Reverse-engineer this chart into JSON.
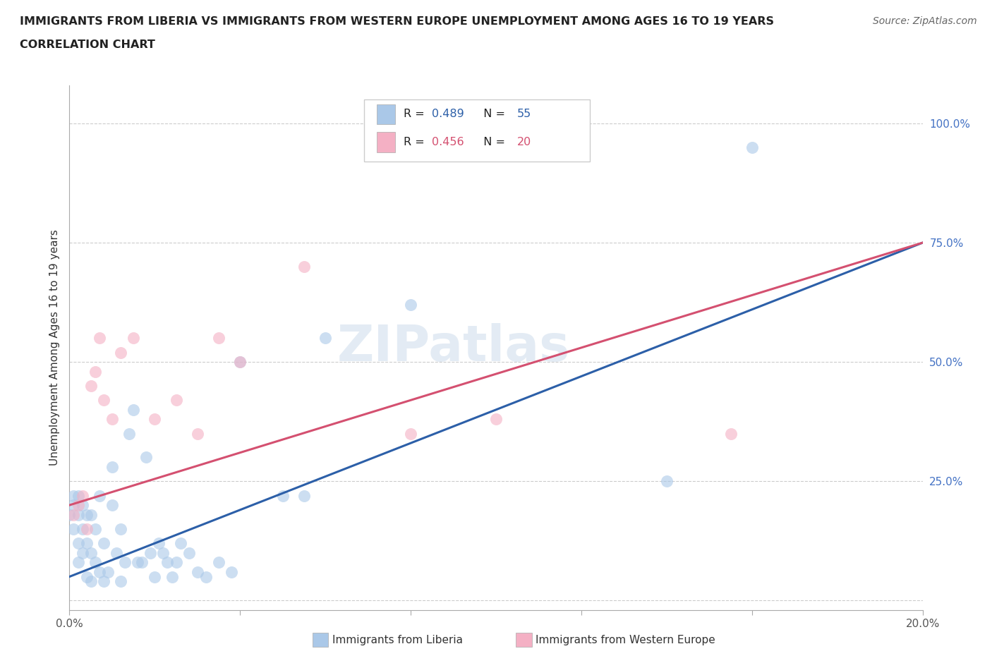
{
  "title_line1": "IMMIGRANTS FROM LIBERIA VS IMMIGRANTS FROM WESTERN EUROPE UNEMPLOYMENT AMONG AGES 16 TO 19 YEARS",
  "title_line2": "CORRELATION CHART",
  "source_text": "Source: ZipAtlas.com",
  "ylabel": "Unemployment Among Ages 16 to 19 years",
  "xlim": [
    0.0,
    0.2
  ],
  "ylim": [
    -0.02,
    1.08
  ],
  "xticks": [
    0.0,
    0.04,
    0.08,
    0.12,
    0.16,
    0.2
  ],
  "xticklabels": [
    "0.0%",
    "",
    "",
    "",
    "",
    "20.0%"
  ],
  "yticks": [
    0.0,
    0.25,
    0.5,
    0.75,
    1.0
  ],
  "yticklabels": [
    "",
    "25.0%",
    "50.0%",
    "75.0%",
    "100.0%"
  ],
  "liberia_R": 0.489,
  "liberia_N": 55,
  "western_europe_R": 0.456,
  "western_europe_N": 20,
  "liberia_color": "#aac8e8",
  "western_europe_color": "#f4b0c4",
  "liberia_line_color": "#2c5fa8",
  "western_europe_line_color": "#d45070",
  "ytick_color": "#4472c4",
  "legend_label_liberia": "Immigrants from Liberia",
  "legend_label_we": "Immigrants from Western Europe",
  "watermark": "ZIPatlas",
  "liberia_line_x0": 0.0,
  "liberia_line_y0": 0.05,
  "liberia_line_x1": 0.2,
  "liberia_line_y1": 0.75,
  "we_line_x0": 0.0,
  "we_line_y0": 0.2,
  "we_line_x1": 0.2,
  "we_line_y1": 0.75
}
